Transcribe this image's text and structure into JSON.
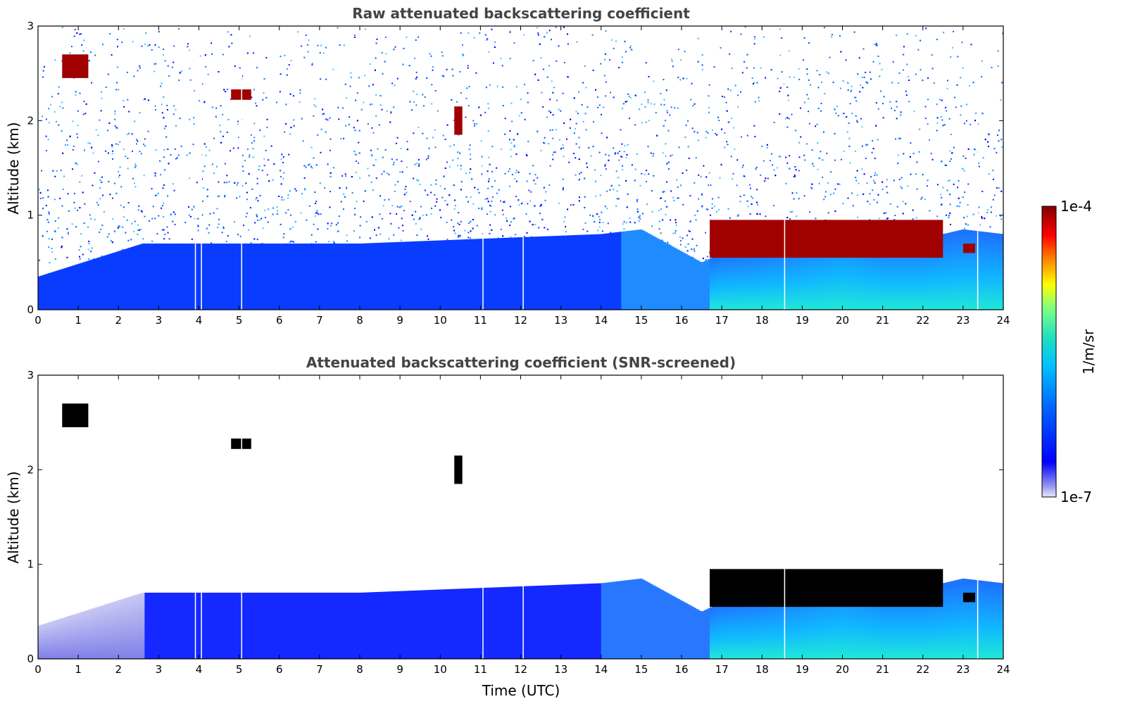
{
  "chart_data": [
    {
      "type": "heatmap",
      "title": "Raw attenuated backscattering coefficient",
      "xlabel": "",
      "ylabel": "Altitude (km)",
      "xlim": [
        0,
        24
      ],
      "ylim": [
        0,
        3
      ],
      "xticks": [
        0,
        1,
        2,
        3,
        4,
        5,
        6,
        7,
        8,
        9,
        10,
        11,
        12,
        13,
        14,
        15,
        16,
        17,
        18,
        19,
        20,
        21,
        22,
        23,
        24
      ],
      "yticks": [
        0,
        1,
        2,
        3
      ],
      "grid": false,
      "features": {
        "aerosol_layer_top_km": [
          [
            0,
            0.35
          ],
          [
            2.6,
            0.7
          ],
          [
            8,
            0.7
          ],
          [
            14,
            0.8
          ],
          [
            15,
            0.85
          ],
          [
            16.5,
            0.5
          ],
          [
            17,
            0.6
          ],
          [
            18,
            0.65
          ],
          [
            19,
            0.75
          ],
          [
            20,
            0.9
          ],
          [
            21,
            0.75
          ],
          [
            22,
            0.75
          ],
          [
            23,
            0.85
          ],
          [
            24,
            0.8
          ]
        ],
        "clouds": [
          {
            "t0": 0.6,
            "t1": 1.25,
            "z0": 2.45,
            "z1": 2.7
          },
          {
            "t0": 4.8,
            "t1": 5.3,
            "z0": 2.22,
            "z1": 2.33
          },
          {
            "t0": 10.35,
            "t1": 10.55,
            "z0": 1.85,
            "z1": 2.15
          },
          {
            "t0": 16.7,
            "t1": 22.5,
            "z0": 0.55,
            "z1": 0.95
          },
          {
            "t0": 23.0,
            "t1": 23.3,
            "z0": 0.6,
            "z1": 0.7
          }
        ],
        "data_gaps_utc": [
          3.9,
          4.05,
          5.05,
          11.05,
          12.05,
          18.55,
          23.35
        ]
      }
    },
    {
      "type": "heatmap",
      "title": "Attenuated backscattering coefficient (SNR-screened)",
      "xlabel": "Time (UTC)",
      "ylabel": "Altitude (km)",
      "xlim": [
        0,
        24
      ],
      "ylim": [
        0,
        3
      ],
      "xticks": [
        0,
        1,
        2,
        3,
        4,
        5,
        6,
        7,
        8,
        9,
        10,
        11,
        12,
        13,
        14,
        15,
        16,
        17,
        18,
        19,
        20,
        21,
        22,
        23,
        24
      ],
      "yticks": [
        0,
        1,
        2,
        3
      ],
      "grid": false
    }
  ],
  "colorbar": {
    "label": "1/m/sr",
    "max_label": "1e-4",
    "min_label": "1e-7",
    "scale": "log",
    "range": [
      1e-07,
      0.0001
    ],
    "colors": [
      "#e0e0f8",
      "#9090f0",
      "#0000ff",
      "#0060ff",
      "#00c0ff",
      "#20e0c0",
      "#80ff80",
      "#ffff00",
      "#ff8000",
      "#ff0000",
      "#800000"
    ]
  }
}
